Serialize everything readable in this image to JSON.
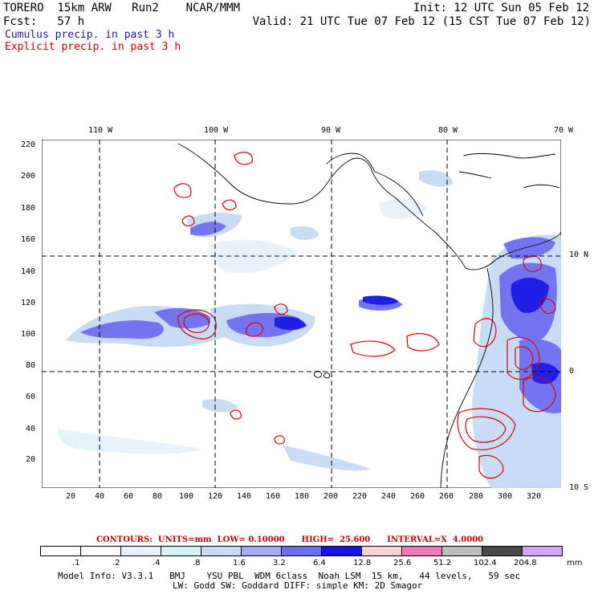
{
  "header": {
    "model": "TORERO  15km ARW   Run2    NCAR/MMM",
    "init": "Init: 12 UTC Sun 05 Feb 12",
    "fcst": "Fcst:   57 h",
    "valid": "Valid: 21 UTC Tue 07 Feb 12 (15 CST Tue 07 Feb 12)",
    "cumulus": "Cumulus precip. in past 3 h",
    "explicit": "Explicit precip. in past 3 h"
  },
  "top_lon_labels": [
    "110 W",
    "100 W",
    "90 W",
    "80 W",
    "70 W"
  ],
  "right_lat_labels": [
    "10 N",
    "0",
    "10 S"
  ],
  "y_ticks": [
    "220",
    "200",
    "180",
    "160",
    "140",
    "120",
    "100",
    "80",
    "60",
    "40",
    "20"
  ],
  "x_ticks": [
    "20",
    "40",
    "60",
    "80",
    "100",
    "120",
    "140",
    "160",
    "180",
    "200",
    "220",
    "240",
    "260",
    "280",
    "300",
    "320"
  ],
  "contours_line": "CONTOURS:  UNITS=mm  LOW= 0.10000      HIGH=  25.600      INTERVAL=X  4.0000",
  "colorbar": {
    "labels": [
      ".1",
      ".2",
      ".4",
      ".8",
      "1.6",
      "3.2",
      "6.4",
      "12.8",
      "25.6",
      "51.2",
      "102.4",
      "204.8"
    ],
    "units": "mm",
    "colors": [
      "#ffffff",
      "#ffffff",
      "#e6f2fb",
      "#d3f3f8",
      "#c6dcf5",
      "#a3aef0",
      "#6c6ef0",
      "#1414e6",
      "#fbd0d0",
      "#f07ab8",
      "#bdbdbd",
      "#4a4a4a",
      "#d2a6f4"
    ]
  },
  "model_info_1": "Model Info: V3.3.1   BMJ    YSU PBL  WDM 6class  Noah LSM  15 km,   44 levels,   59 sec",
  "model_info_2": "LW: Godd SW: Goddard DIFF: simple KM: 2D Smagor"
}
